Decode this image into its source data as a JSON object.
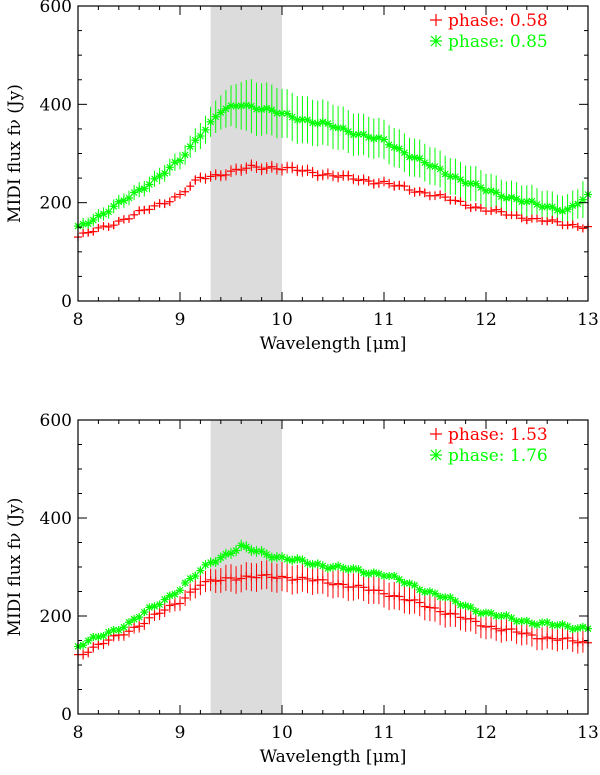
{
  "chart_data": [
    {
      "type": "scatter",
      "panel": "top",
      "xlabel": "Wavelength [μm]",
      "ylabel": "MIDI flux fν (Jy)",
      "xlim": [
        8,
        13
      ],
      "ylim": [
        0,
        600
      ],
      "x_ticks": [
        8,
        9,
        10,
        11,
        12,
        13
      ],
      "y_ticks": [
        0,
        200,
        400,
        600
      ],
      "legend_position": "top-right",
      "shaded_band": {
        "x_range": [
          9.3,
          10.0
        ],
        "color": "#dcdcdc"
      },
      "series": [
        {
          "name": "phase: 0.58",
          "marker": "plus",
          "color": "#ff0000",
          "knots": [
            [
              8.0,
              130
            ],
            [
              8.5,
              170
            ],
            [
              9.0,
              215
            ],
            [
              9.2,
              250
            ],
            [
              9.5,
              262
            ],
            [
              9.7,
              272
            ],
            [
              9.9,
              272
            ],
            [
              10.2,
              265
            ],
            [
              10.5,
              255
            ],
            [
              11.0,
              240
            ],
            [
              11.5,
              215
            ],
            [
              12.0,
              185
            ],
            [
              12.5,
              165
            ],
            [
              13.0,
              150
            ]
          ],
          "err_knots": [
            [
              8.0,
              8
            ],
            [
              9.0,
              9
            ],
            [
              9.5,
              12
            ],
            [
              10.0,
              12
            ],
            [
              11.0,
              10
            ],
            [
              12.0,
              8
            ],
            [
              13.0,
              8
            ]
          ]
        },
        {
          "name": "phase: 0.85",
          "marker": "asterisk",
          "color": "#00ff00",
          "knots": [
            [
              8.0,
              148
            ],
            [
              8.5,
              210
            ],
            [
              9.0,
              285
            ],
            [
              9.2,
              340
            ],
            [
              9.4,
              385
            ],
            [
              9.6,
              400
            ],
            [
              9.8,
              392
            ],
            [
              10.0,
              380
            ],
            [
              10.5,
              355
            ],
            [
              11.0,
              325
            ],
            [
              11.5,
              270
            ],
            [
              12.0,
              225
            ],
            [
              12.5,
              195
            ],
            [
              12.8,
              185
            ],
            [
              13.0,
              212
            ]
          ],
          "err_knots": [
            [
              8.0,
              12
            ],
            [
              9.0,
              18
            ],
            [
              9.4,
              35
            ],
            [
              9.7,
              55
            ],
            [
              10.0,
              50
            ],
            [
              10.5,
              45
            ],
            [
              11.0,
              40
            ],
            [
              11.5,
              38
            ],
            [
              12.0,
              35
            ],
            [
              12.5,
              33
            ],
            [
              12.9,
              30
            ],
            [
              13.0,
              45
            ]
          ]
        }
      ]
    },
    {
      "type": "scatter",
      "panel": "bottom",
      "xlabel": "Wavelength [μm]",
      "ylabel": "MIDI flux fν (Jy)",
      "xlim": [
        8,
        13
      ],
      "ylim": [
        0,
        600
      ],
      "x_ticks": [
        8,
        9,
        10,
        11,
        12,
        13
      ],
      "y_ticks": [
        0,
        200,
        400,
        600
      ],
      "legend_position": "top-right",
      "shaded_band": {
        "x_range": [
          9.3,
          10.0
        ],
        "color": "#dcdcdc"
      },
      "series": [
        {
          "name": "phase: 1.53",
          "marker": "plus",
          "color": "#ff0000",
          "knots": [
            [
              8.0,
              120
            ],
            [
              8.5,
              170
            ],
            [
              9.0,
              230
            ],
            [
              9.2,
              265
            ],
            [
              9.5,
              278
            ],
            [
              9.8,
              280
            ],
            [
              10.0,
              280
            ],
            [
              10.5,
              268
            ],
            [
              11.0,
              248
            ],
            [
              11.5,
              215
            ],
            [
              12.0,
              180
            ],
            [
              12.5,
              158
            ],
            [
              13.0,
              145
            ]
          ],
          "err_knots": [
            [
              8.0,
              10
            ],
            [
              9.0,
              15
            ],
            [
              9.5,
              28
            ],
            [
              10.0,
              30
            ],
            [
              10.5,
              28
            ],
            [
              11.0,
              28
            ],
            [
              11.5,
              28
            ],
            [
              12.0,
              25
            ],
            [
              13.0,
              22
            ]
          ]
        },
        {
          "name": "phase: 1.76",
          "marker": "asterisk",
          "color": "#00ff00",
          "knots": [
            [
              8.0,
              138
            ],
            [
              8.5,
              185
            ],
            [
              9.0,
              255
            ],
            [
              9.3,
              310
            ],
            [
              9.6,
              340
            ],
            [
              9.8,
              330
            ],
            [
              10.0,
              318
            ],
            [
              10.5,
              300
            ],
            [
              11.0,
              285
            ],
            [
              11.5,
              245
            ],
            [
              12.0,
              205
            ],
            [
              12.5,
              185
            ],
            [
              13.0,
              175
            ]
          ],
          "err_knots": [
            [
              8.0,
              8
            ],
            [
              9.0,
              8
            ],
            [
              9.6,
              12
            ],
            [
              10.0,
              10
            ],
            [
              11.0,
              8
            ],
            [
              12.0,
              8
            ],
            [
              13.0,
              8
            ]
          ]
        }
      ]
    }
  ]
}
